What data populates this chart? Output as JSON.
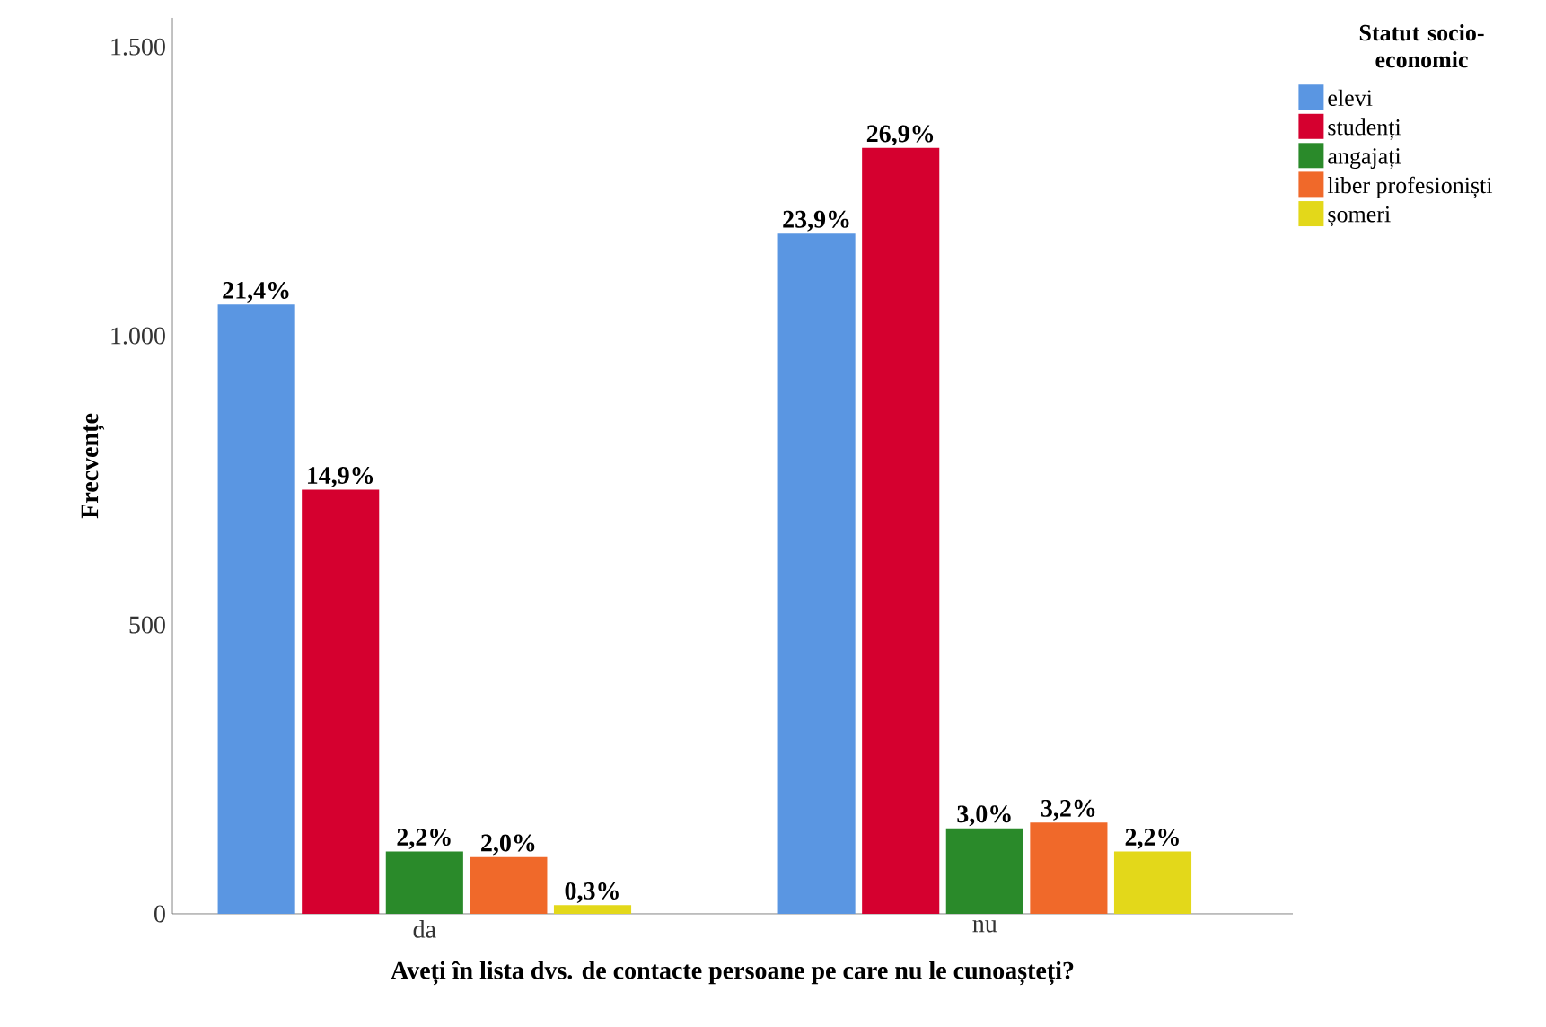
{
  "chart_data": {
    "type": "bar",
    "xlabel": "Aveți în lista dvs. de contacte persoane pe care nu le cunoașteți?",
    "ylabel": "Frecvențe",
    "legend_title": "Statut socio-economic",
    "legend": "top right",
    "grid": false,
    "categories": [
      "da",
      "nu"
    ],
    "ylim": [
      0,
      1550
    ],
    "yticks": [
      {
        "value": 0,
        "label": "0"
      },
      {
        "value": 500,
        "label": "500"
      },
      {
        "value": 1000,
        "label": "1.000"
      },
      {
        "value": 1500,
        "label": "1.500"
      }
    ],
    "series": [
      {
        "name": "elevi",
        "color": "#5a96e2",
        "values": [
          1054,
          1177
        ]
      },
      {
        "name": "studenți",
        "color": "#d5002f",
        "values": [
          734,
          1325
        ]
      },
      {
        "name": "angajați",
        "color": "#2a8a2a",
        "values": [
          108,
          148
        ]
      },
      {
        "name": "liber profesioniști",
        "color": "#f0692a",
        "values": [
          98,
          158
        ]
      },
      {
        "name": "șomeri",
        "color": "#e3d81a",
        "values": [
          15,
          108
        ]
      }
    ],
    "annotations": [
      "21,4%",
      "14,9%",
      "2,2%",
      "2,0%",
      "0,3%",
      "23,9%",
      "26,9%",
      "3,0%",
      "3,2%",
      "2,2%"
    ]
  }
}
